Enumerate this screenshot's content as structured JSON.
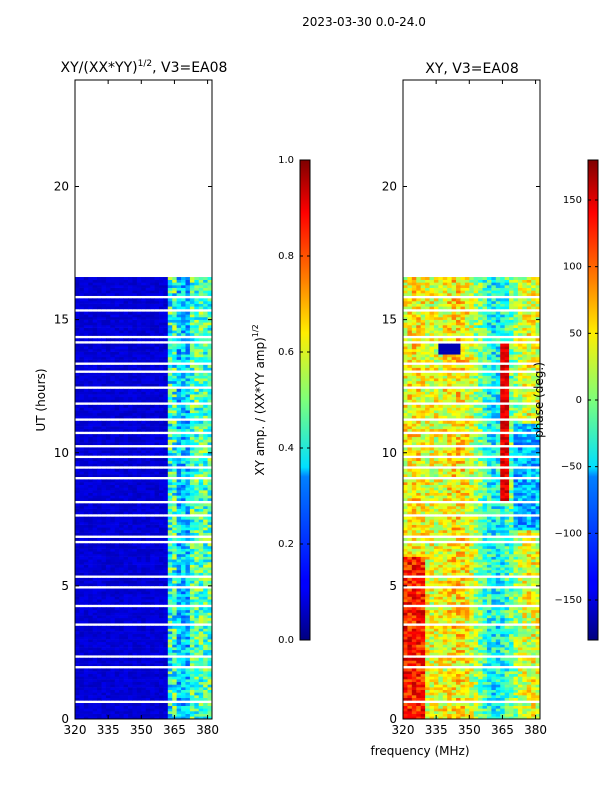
{
  "figure_title": "2023-03-30 0.0-24.0",
  "chart_data": [
    {
      "type": "heatmap",
      "title": "XY/(XX*YY)^(1/2), V3=EA08",
      "title_main": "XY/(XX*YY)",
      "title_exp": "1/2",
      "title_suffix": ", V3=EA08",
      "xlabel": "",
      "ylabel": "UT (hours)",
      "xlim": [
        320,
        382
      ],
      "ylim": [
        0,
        24
      ],
      "xticks": [
        "320",
        "335",
        "350",
        "365",
        "380"
      ],
      "xtick_values": [
        320,
        335,
        350,
        365,
        380
      ],
      "yticks": [
        "0",
        "5",
        "10",
        "15",
        "20"
      ],
      "ytick_values": [
        0,
        5,
        10,
        15,
        20
      ],
      "data_coverage_hours": [
        0,
        16.5
      ],
      "colorbar": {
        "label": "XY amp. / (XX*YY amp)^(1/2)",
        "label_main": "XY amp. / (XX*YY amp)",
        "label_exp": "1/2",
        "range": [
          0.0,
          1.0
        ],
        "ticks": [
          "0.0",
          "0.2",
          "0.4",
          "0.6",
          "0.8",
          "1.0"
        ],
        "tick_values": [
          0.0,
          0.2,
          0.4,
          0.6,
          0.8,
          1.0
        ],
        "colormap": "jet"
      }
    },
    {
      "type": "heatmap",
      "title": "XY, V3=EA08",
      "xlabel": "frequency (MHz)",
      "ylabel": "",
      "xlim": [
        320,
        382
      ],
      "ylim": [
        0,
        24
      ],
      "xticks": [
        "320",
        "335",
        "350",
        "365",
        "380"
      ],
      "xtick_values": [
        320,
        335,
        350,
        365,
        380
      ],
      "yticks": [
        "0",
        "5",
        "10",
        "15",
        "20"
      ],
      "ytick_values": [
        0,
        5,
        10,
        15,
        20
      ],
      "data_coverage_hours": [
        0,
        16.5
      ],
      "colorbar": {
        "label": "phase (deg.)",
        "range": [
          -180,
          180
        ],
        "ticks": [
          "−150",
          "−100",
          "−50",
          "0",
          "50",
          "100",
          "150"
        ],
        "tick_values": [
          -150,
          -100,
          -50,
          0,
          50,
          100,
          150
        ],
        "colormap": "jet"
      }
    }
  ]
}
